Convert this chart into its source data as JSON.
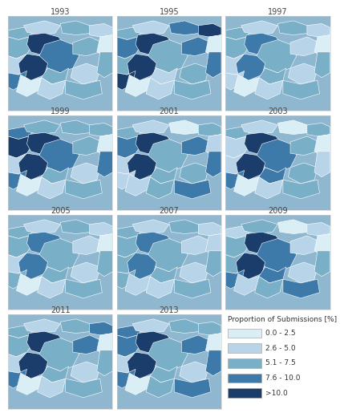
{
  "years": [
    "1993",
    "1995",
    "1997",
    "1999",
    "2001",
    "2003",
    "2005",
    "2007",
    "2009",
    "2011",
    "2013"
  ],
  "legend_title": "Proportion of Submissions [%]",
  "legend_labels": [
    "0.0 - 2.5",
    "2.6 - 5.0",
    "5.1 - 7.5",
    "7.6 - 10.0",
    ">10.0"
  ],
  "legend_colors": [
    "#daeef5",
    "#b8d4e8",
    "#7aafc8",
    "#3d7aaa",
    "#1a3d6b"
  ],
  "bg_color": "#ffffff",
  "map_bg": "#8fb8d0",
  "title_fontsize": 7,
  "legend_title_fontsize": 6.5,
  "legend_label_fontsize": 6.5,
  "region_colors": {
    "1993": {
      "r1": "#7aafc8",
      "r2": "#b8d4e8",
      "r3": "#7aafc8",
      "r4": "#b8d4e8",
      "r5": "#7aafc8",
      "r6": "#1a3d6b",
      "r7": "#3d7aaa",
      "r8": "#7aafc8",
      "r9": "#daeef5",
      "r10": "#b8d4e8",
      "r11": "#1a3d6b",
      "r12": "#7aafc8",
      "r13": "#b8d4e8",
      "r14": "#7aafc8",
      "r15": "#3d7aaa",
      "r16": "#daeef5",
      "r17": "#b8d4e8",
      "r18": "#7aafc8"
    },
    "1995": {
      "r1": "#7aafc8",
      "r2": "#b8d4e8",
      "r3": "#3d7aaa",
      "r4": "#1a3d6b",
      "r5": "#3d7aaa",
      "r6": "#1a3d6b",
      "r7": "#7aafc8",
      "r8": "#3d7aaa",
      "r9": "#daeef5",
      "r10": "#7aafc8",
      "r11": "#1a3d6b",
      "r12": "#b8d4e8",
      "r13": "#7aafc8",
      "r14": "#3d7aaa",
      "r15": "#1a3d6b",
      "r16": "#daeef5",
      "r17": "#b8d4e8",
      "r18": "#7aafc8"
    },
    "1997": {
      "r1": "#7aafc8",
      "r2": "#b8d4e8",
      "r3": "#7aafc8",
      "r4": "#b8d4e8",
      "r5": "#7aafc8",
      "r6": "#3d7aaa",
      "r7": "#7aafc8",
      "r8": "#b8d4e8",
      "r9": "#daeef5",
      "r10": "#b8d4e8",
      "r11": "#3d7aaa",
      "r12": "#7aafc8",
      "r13": "#b8d4e8",
      "r14": "#7aafc8",
      "r15": "#b8d4e8",
      "r16": "#daeef5",
      "r17": "#b8d4e8",
      "r18": "#7aafc8"
    },
    "1999": {
      "r1": "#3d7aaa",
      "r2": "#7aafc8",
      "r3": "#7aafc8",
      "r4": "#7aafc8",
      "r5": "#1a3d6b",
      "r6": "#1a3d6b",
      "r7": "#3d7aaa",
      "r8": "#7aafc8",
      "r9": "#daeef5",
      "r10": "#b8d4e8",
      "r11": "#1a3d6b",
      "r12": "#7aafc8",
      "r13": "#b8d4e8",
      "r14": "#3d7aaa",
      "r15": "#3d7aaa",
      "r16": "#daeef5",
      "r17": "#b8d4e8",
      "r18": "#7aafc8"
    },
    "2001": {
      "r1": "#7aafc8",
      "r2": "#b8d4e8",
      "r3": "#daeef5",
      "r4": "#7aafc8",
      "r5": "#3d7aaa",
      "r6": "#1a3d6b",
      "r7": "#7aafc8",
      "r8": "#3d7aaa",
      "r9": "#b8d4e8",
      "r10": "#b8d4e8",
      "r11": "#1a3d6b",
      "r12": "#7aafc8",
      "r13": "#7aafc8",
      "r14": "#3d7aaa",
      "r15": "#b8d4e8",
      "r16": "#b8d4e8",
      "r17": "#7aafc8",
      "r18": "#3d7aaa"
    },
    "2003": {
      "r1": "#7aafc8",
      "r2": "#b8d4e8",
      "r3": "#daeef5",
      "r4": "#7aafc8",
      "r5": "#b8d4e8",
      "r6": "#1a3d6b",
      "r7": "#3d7aaa",
      "r8": "#7aafc8",
      "r9": "#daeef5",
      "r10": "#b8d4e8",
      "r11": "#1a3d6b",
      "r12": "#3d7aaa",
      "r13": "#7aafc8",
      "r14": "#b8d4e8",
      "r15": "#3d7aaa",
      "r16": "#daeef5",
      "r17": "#b8d4e8",
      "r18": "#7aafc8"
    },
    "2005": {
      "r1": "#7aafc8",
      "r2": "#b8d4e8",
      "r3": "#7aafc8",
      "r4": "#b8d4e8",
      "r5": "#7aafc8",
      "r6": "#3d7aaa",
      "r7": "#7aafc8",
      "r8": "#b8d4e8",
      "r9": "#daeef5",
      "r10": "#b8d4e8",
      "r11": "#3d7aaa",
      "r12": "#7aafc8",
      "r13": "#b8d4e8",
      "r14": "#7aafc8",
      "r15": "#7aafc8",
      "r16": "#daeef5",
      "r17": "#b8d4e8",
      "r18": "#7aafc8"
    },
    "2007": {
      "r1": "#7aafc8",
      "r2": "#b8d4e8",
      "r3": "#7aafc8",
      "r4": "#b8d4e8",
      "r5": "#7aafc8",
      "r6": "#3d7aaa",
      "r7": "#7aafc8",
      "r8": "#b8d4e8",
      "r9": "#b8d4e8",
      "r10": "#7aafc8",
      "r11": "#3d7aaa",
      "r12": "#7aafc8",
      "r13": "#b8d4e8",
      "r14": "#7aafc8",
      "r15": "#7aafc8",
      "r16": "#b8d4e8",
      "r17": "#b8d4e8",
      "r18": "#7aafc8"
    },
    "2009": {
      "r1": "#b8d4e8",
      "r2": "#7aafc8",
      "r3": "#daeef5",
      "r4": "#b8d4e8",
      "r5": "#7aafc8",
      "r6": "#1a3d6b",
      "r7": "#3d7aaa",
      "r8": "#b8d4e8",
      "r9": "#daeef5",
      "r10": "#7aafc8",
      "r11": "#1a3d6b",
      "r12": "#3d7aaa",
      "r13": "#b8d4e8",
      "r14": "#7aafc8",
      "r15": "#3d7aaa",
      "r16": "#b8d4e8",
      "r17": "#7aafc8",
      "r18": "#3d7aaa"
    },
    "2011": {
      "r1": "#7aafc8",
      "r2": "#b8d4e8",
      "r3": "#7aafc8",
      "r4": "#3d7aaa",
      "r5": "#7aafc8",
      "r6": "#1a3d6b",
      "r7": "#7aafc8",
      "r8": "#3d7aaa",
      "r9": "#daeef5",
      "r10": "#b8d4e8",
      "r11": "#1a3d6b",
      "r12": "#7aafc8",
      "r13": "#b8d4e8",
      "r14": "#7aafc8",
      "r15": "#3d7aaa",
      "r16": "#daeef5",
      "r17": "#b8d4e8",
      "r18": "#7aafc8"
    },
    "2013": {
      "r1": "#3d7aaa",
      "r2": "#b8d4e8",
      "r3": "#7aafc8",
      "r4": "#7aafc8",
      "r5": "#3d7aaa",
      "r6": "#1a3d6b",
      "r7": "#7aafc8",
      "r8": "#3d7aaa",
      "r9": "#daeef5",
      "r10": "#b8d4e8",
      "r11": "#1a3d6b",
      "r12": "#7aafc8",
      "r13": "#b8d4e8",
      "r14": "#3d7aaa",
      "r15": "#3d7aaa",
      "r16": "#daeef5",
      "r17": "#7aafc8",
      "r18": "#3d7aaa"
    }
  }
}
